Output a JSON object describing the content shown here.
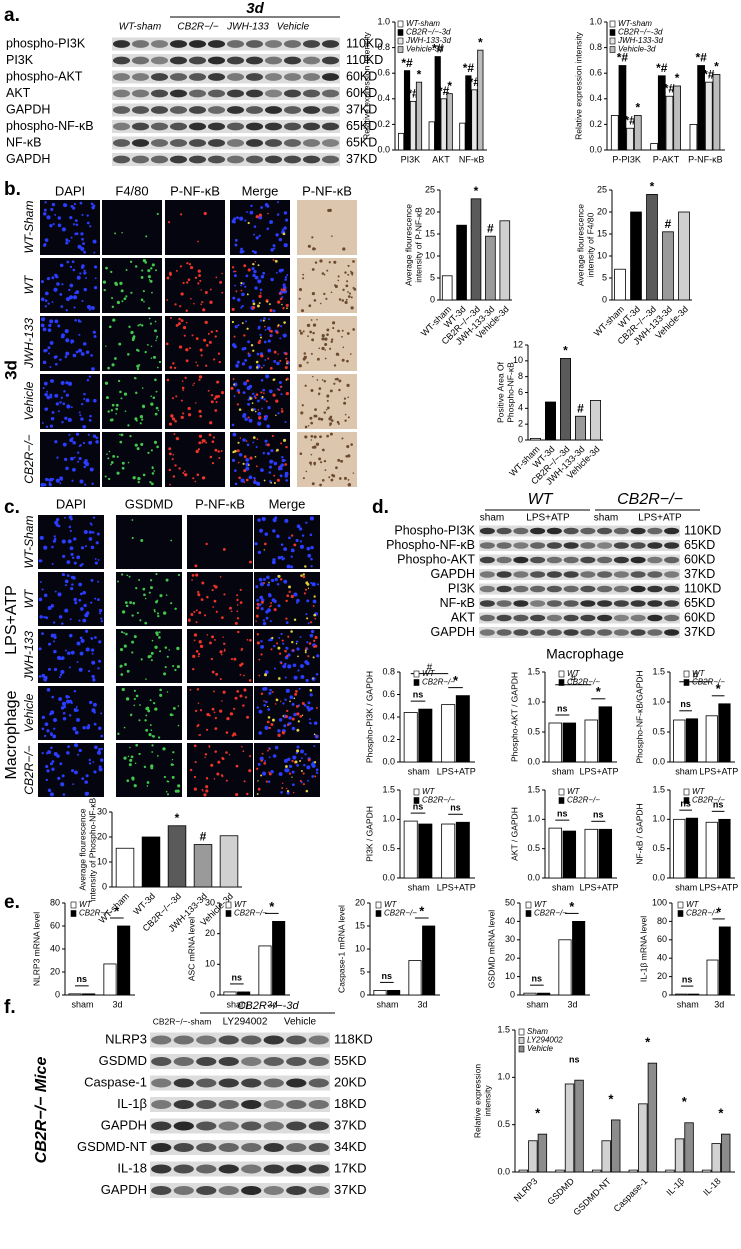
{
  "figure": {
    "panel_labels": [
      "a.",
      "b.",
      "c.",
      "d.",
      "e.",
      "f."
    ],
    "blot_a": {
      "group_title": "3d",
      "groups": [
        "WT-sham",
        "CB2R−/−",
        "JWH-133",
        "Vehicle"
      ],
      "rows": [
        "phospho-PI3K",
        "PI3K",
        "phospho-AKT",
        "AKT",
        "GAPDH",
        "phospho-NF-κB",
        "NF-κB",
        "GAPDH"
      ],
      "sizes": [
        "110KD",
        "110KD",
        "60KD",
        "60KD",
        "37KD",
        "65KD",
        "65KD",
        "37KD"
      ]
    },
    "images_b": {
      "group": "3d",
      "columns": [
        "DAPI",
        "F4/80",
        "P-NF-κB",
        "Merge",
        "P-NF-κB"
      ],
      "rows": [
        "WT-Sham",
        "WT",
        "JWH-133",
        "Vehicle",
        "CB2R−/−"
      ]
    },
    "images_c": {
      "groups": [
        "LPS+ATP",
        "Macrophage"
      ],
      "columns": [
        "DAPI",
        "GSDMD",
        "P-NF-κB",
        "Merge"
      ],
      "rows": [
        "WT-Sham",
        "WT",
        "JWH-133",
        "Vehicle",
        "CB2R−/−"
      ]
    },
    "blot_d": {
      "groups": [
        "WT",
        "CB2R−/−"
      ],
      "lanes": [
        "sham",
        "LPS+ATP",
        "sham",
        "LPS+ATP"
      ],
      "rows": [
        "Phospho-PI3K",
        "Phospho-NF-κB",
        "Phospho-AKT",
        "GAPDH",
        "PI3K",
        "NF-κB",
        "AKT",
        "GAPDH"
      ],
      "sizes": [
        "110KD",
        "65KD",
        "60KD",
        "37KD",
        "110KD",
        "65KD",
        "60KD",
        "37KD"
      ],
      "caption": "Macrophage"
    },
    "blot_f": {
      "side_label": "CB2R−/− Mice",
      "group_title": "CB2R−/−-3d",
      "groups": [
        "CB2R−/−-sham",
        "LY294002",
        "Vehicle"
      ],
      "rows": [
        "NLRP3",
        "GSDMD",
        "Caspase-1",
        "IL-1β",
        "GAPDH",
        "GSDMD-NT",
        "IL-18",
        "GAPDH"
      ],
      "sizes": [
        "118KD",
        "55KD",
        "20KD",
        "18KD",
        "37KD",
        "34KD",
        "17KD",
        "37KD"
      ]
    }
  },
  "chart_data": [
    {
      "type": "bar",
      "ylabel": "Relative expression intensity",
      "categories": [
        "PI3K",
        "AKT",
        "NF-κB"
      ],
      "ylim": [
        0,
        1
      ],
      "yticks": [
        {
          "value": 0,
          "label": "0.0"
        },
        0.2,
        0.4,
        0.6,
        0.8,
        {
          "value": 1,
          "label": "1.0"
        }
      ],
      "series": [
        {
          "name": "WT-sham",
          "color": "#ffffff",
          "values": [
            0.13,
            0.22,
            0.21
          ]
        },
        {
          "name": "CB2R−/−-3d",
          "color": "#000000",
          "values": [
            0.62,
            0.73,
            0.58
          ],
          "marks": [
            "*#",
            "*#",
            "*#"
          ]
        },
        {
          "name": "JWH-133-3d",
          "color": "#e6e6e6",
          "values": [
            0.38,
            0.4,
            0.47
          ],
          "marks": [
            "*#",
            "*#",
            "*#"
          ]
        },
        {
          "name": "Vehicle-3d",
          "color": "#bdbdbd",
          "values": [
            0.53,
            0.44,
            0.78
          ],
          "marks": [
            "*",
            "*",
            "*"
          ]
        }
      ]
    },
    {
      "type": "bar",
      "ylabel": "Relative expression intensity",
      "categories": [
        "P-PI3K",
        "P-AKT",
        "P-NF-κB"
      ],
      "ylim": [
        0,
        1
      ],
      "yticks": [
        {
          "value": 0,
          "label": "0.0"
        },
        0.2,
        0.4,
        0.6,
        0.8,
        {
          "value": 1,
          "label": "1.0"
        }
      ],
      "series": [
        {
          "name": "WT-sham",
          "color": "#ffffff",
          "values": [
            0.27,
            0.05,
            0.2
          ]
        },
        {
          "name": "CB2R−/−-3d",
          "color": "#000000",
          "values": [
            0.66,
            0.58,
            0.66
          ],
          "marks": [
            "*#",
            "*#",
            "*#"
          ]
        },
        {
          "name": "JWH-133-3d",
          "color": "#e6e6e6",
          "values": [
            0.17,
            0.42,
            0.53
          ],
          "marks": [
            "*#",
            "*#",
            "*#"
          ]
        },
        {
          "name": "Vehicle-3d",
          "color": "#bdbdbd",
          "values": [
            0.27,
            0.5,
            0.59
          ],
          "marks": [
            "*",
            "*",
            "*"
          ]
        }
      ]
    },
    {
      "type": "bar",
      "ylabel": [
        "Average flourescence",
        "intensity of P-NF-κB"
      ],
      "categories": [
        "WT-sham",
        "WT-3d",
        "CB2R−/−-3d",
        "JWH-133-3d",
        "Vehicle-3d"
      ],
      "ylim": [
        0,
        25
      ],
      "yticks": [
        0,
        5,
        10,
        15,
        20,
        25
      ],
      "values": [
        5.5,
        17,
        23,
        14.5,
        18
      ],
      "colors": [
        "#ffffff",
        "#000000",
        "#5a5a5a",
        "#9a9a9a",
        "#d0d0d0"
      ],
      "marks": [
        null,
        null,
        "*",
        "#",
        null
      ]
    },
    {
      "type": "bar",
      "ylabel": [
        "Average flourescence",
        "intensity of F4/80"
      ],
      "categories": [
        "WT-sham",
        "WT-3d",
        "CB2R−/−-3d",
        "JWH-133-3d",
        "Vehicle-3d"
      ],
      "ylim": [
        0,
        25
      ],
      "yticks": [
        0,
        5,
        10,
        15,
        20,
        25
      ],
      "values": [
        7,
        20,
        24,
        15.5,
        20
      ],
      "colors": [
        "#ffffff",
        "#000000",
        "#5a5a5a",
        "#9a9a9a",
        "#d0d0d0"
      ],
      "marks": [
        null,
        null,
        "*",
        "#",
        null
      ]
    },
    {
      "type": "bar",
      "ylabel": [
        "Positive Area Of",
        "Phospho-NF-κB"
      ],
      "categories": [
        "WT-sham",
        "WT-3d",
        "CB2R−/−-3d",
        "JWH-133-3d",
        "Vehicle-3d"
      ],
      "ylim": [
        0,
        12
      ],
      "yticks": [
        0,
        2,
        4,
        6,
        8,
        10,
        12
      ],
      "values": [
        0.2,
        4.8,
        10.3,
        3,
        5
      ],
      "colors": [
        "#ffffff",
        "#000000",
        "#5a5a5a",
        "#9a9a9a",
        "#d0d0d0"
      ],
      "marks": [
        null,
        null,
        "*",
        "#",
        null
      ]
    },
    {
      "type": "bar",
      "ylabel": [
        "Average flourescence",
        "intensity of Phospho-NF-κB"
      ],
      "categories": [
        "WT-sham",
        "WT-3d",
        "CB2R−/−-3d",
        "JWH-133-3d",
        "Vehicle-3d"
      ],
      "ylim": [
        0,
        30
      ],
      "yticks": [
        0,
        10,
        20,
        30
      ],
      "values": [
        15.5,
        20,
        24.5,
        17,
        20.5
      ],
      "colors": [
        "#ffffff",
        "#000000",
        "#5a5a5a",
        "#9a9a9a",
        "#d0d0d0"
      ],
      "marks": [
        null,
        null,
        "*",
        "#",
        null
      ]
    },
    {
      "type": "bar",
      "ylabel": "Phospho-PI3K / GAPDH",
      "categories": [
        "sham",
        "LPS+ATP"
      ],
      "ylim": [
        0,
        0.8
      ],
      "yticks": [
        {
          "value": 0,
          "label": "0.0"
        },
        0.2,
        0.4,
        0.6,
        0.8
      ],
      "series": [
        {
          "name": "WT",
          "color": "#ffffff",
          "values": [
            0.44,
            0.51
          ]
        },
        {
          "name": "CB2R−/−",
          "color": "#000000",
          "values": [
            0.47,
            0.59
          ]
        }
      ],
      "pair_labels": [
        "ns",
        "*"
      ],
      "between_label": "#"
    },
    {
      "type": "bar",
      "ylabel": "Phospho-AKT / GAPDH",
      "categories": [
        "sham",
        "LPS+ATP"
      ],
      "ylim": [
        0,
        1.5
      ],
      "yticks": [
        {
          "value": 0,
          "label": "0.0"
        },
        0.5,
        {
          "value": 1,
          "label": "1.0"
        },
        1.5
      ],
      "series": [
        {
          "name": "WT",
          "color": "#ffffff",
          "values": [
            0.65,
            0.7
          ]
        },
        {
          "name": "CB2R−/−",
          "color": "#000000",
          "values": [
            0.65,
            0.92
          ]
        }
      ],
      "pair_labels": [
        "ns",
        "*"
      ],
      "between_label": "#"
    },
    {
      "type": "bar",
      "ylabel": "Phospho-NF-κB/GAPDH",
      "categories": [
        "sham",
        "LPS+ATP"
      ],
      "ylim": [
        0,
        1.5
      ],
      "yticks": [
        {
          "value": 0,
          "label": "0.0"
        },
        0.5,
        {
          "value": 1,
          "label": "1.0"
        },
        1.5
      ],
      "series": [
        {
          "name": "WT",
          "color": "#ffffff",
          "values": [
            0.7,
            0.77
          ]
        },
        {
          "name": "CB2R−/−",
          "color": "#000000",
          "values": [
            0.72,
            0.97
          ]
        }
      ],
      "pair_labels": [
        "ns",
        "*"
      ],
      "between_label": "#"
    },
    {
      "type": "bar",
      "ylabel": "PI3K / GAPDH",
      "categories": [
        "sham",
        "LPS+ATP"
      ],
      "ylim": [
        0,
        1.5
      ],
      "yticks": [
        {
          "value": 0,
          "label": "0.0"
        },
        0.5,
        {
          "value": 1,
          "label": "1.0"
        },
        1.5
      ],
      "series": [
        {
          "name": "WT",
          "color": "#ffffff",
          "values": [
            0.97,
            0.92
          ]
        },
        {
          "name": "CB2R−/−",
          "color": "#000000",
          "values": [
            0.92,
            0.95
          ]
        }
      ],
      "pair_labels": [
        "ns",
        "ns"
      ]
    },
    {
      "type": "bar",
      "ylabel": "AKT / GAPDH",
      "categories": [
        "sham",
        "LPS+ATP"
      ],
      "ylim": [
        0,
        1.5
      ],
      "yticks": [
        {
          "value": 0,
          "label": "0.0"
        },
        0.5,
        {
          "value": 1,
          "label": "1.0"
        },
        1.5
      ],
      "series": [
        {
          "name": "WT",
          "color": "#ffffff",
          "values": [
            0.85,
            0.83
          ]
        },
        {
          "name": "CB2R−/−",
          "color": "#000000",
          "values": [
            0.8,
            0.83
          ]
        }
      ],
      "pair_labels": [
        "ns",
        "ns"
      ]
    },
    {
      "type": "bar",
      "ylabel": "NF-κB / GAPDH",
      "categories": [
        "sham",
        "LPS+ATP"
      ],
      "ylim": [
        0,
        1.5
      ],
      "yticks": [
        {
          "value": 0,
          "label": "0.0"
        },
        0.5,
        {
          "value": 1,
          "label": "1.0"
        },
        1.5
      ],
      "series": [
        {
          "name": "WT",
          "color": "#ffffff",
          "values": [
            1.0,
            0.95
          ]
        },
        {
          "name": "CB2R−/−",
          "color": "#000000",
          "values": [
            1.02,
            1.0
          ]
        }
      ],
      "pair_labels": [
        "ns",
        "ns"
      ]
    },
    {
      "type": "bar",
      "ylabel": "NLRP3 mRNA level",
      "categories": [
        "sham",
        "3d"
      ],
      "ylim": [
        0,
        80
      ],
      "yticks": [
        0,
        20,
        40,
        60,
        80
      ],
      "series": [
        {
          "name": "WT",
          "color": "#ffffff",
          "values": [
            1,
            27
          ]
        },
        {
          "name": "CB2R−/−",
          "color": "#000000",
          "values": [
            1,
            60
          ]
        }
      ],
      "pair_labels": [
        "ns",
        "*"
      ]
    },
    {
      "type": "bar",
      "ylabel": "ASC mRNA level",
      "categories": [
        "sham",
        "3d"
      ],
      "ylim": [
        0,
        30
      ],
      "yticks": [
        0,
        10,
        20,
        30
      ],
      "series": [
        {
          "name": "WT",
          "color": "#ffffff",
          "values": [
            1,
            16
          ]
        },
        {
          "name": "CB2R−/−",
          "color": "#000000",
          "values": [
            1,
            24
          ]
        }
      ],
      "pair_labels": [
        "ns",
        "*"
      ]
    },
    {
      "type": "bar",
      "ylabel": "Caspase-1 mRNA level",
      "categories": [
        "sham",
        "3d"
      ],
      "ylim": [
        0,
        20
      ],
      "yticks": [
        0,
        5,
        10,
        15,
        20
      ],
      "series": [
        {
          "name": "WT",
          "color": "#ffffff",
          "values": [
            1,
            7.5
          ]
        },
        {
          "name": "CB2R−/−",
          "color": "#000000",
          "values": [
            1,
            15
          ]
        }
      ],
      "pair_labels": [
        "ns",
        "*"
      ]
    },
    {
      "type": "bar",
      "ylabel": "GSDMD mRNA level",
      "categories": [
        "sham",
        "3d"
      ],
      "ylim": [
        0,
        50
      ],
      "yticks": [
        0,
        10,
        20,
        30,
        40,
        50
      ],
      "series": [
        {
          "name": "WT",
          "color": "#ffffff",
          "values": [
            1,
            30
          ]
        },
        {
          "name": "CB2R−/−",
          "color": "#000000",
          "values": [
            1,
            40
          ]
        }
      ],
      "pair_labels": [
        "ns",
        "*"
      ]
    },
    {
      "type": "bar",
      "ylabel": "IL-1β mRNA level",
      "categories": [
        "sham",
        "3d"
      ],
      "ylim": [
        0,
        100
      ],
      "yticks": [
        0,
        20,
        40,
        60,
        80,
        100
      ],
      "series": [
        {
          "name": "WT",
          "color": "#ffffff",
          "values": [
            1,
            38
          ]
        },
        {
          "name": "CB2R−/−",
          "color": "#000000",
          "values": [
            1,
            74
          ]
        }
      ],
      "pair_labels": [
        "ns",
        "*"
      ]
    },
    {
      "type": "bar",
      "ylabel": [
        "Relative expression",
        "intensity"
      ],
      "categories": [
        "NLRP3",
        "GSDMD",
        "GSDMD-NT",
        "Caspase-1",
        "IL-1β",
        "IL-18"
      ],
      "ylim": [
        0,
        1.5
      ],
      "yticks": [
        {
          "value": 0,
          "label": "0.0"
        },
        0.5,
        {
          "value": 1,
          "label": "1.0"
        },
        1.5
      ],
      "series": [
        {
          "name": "Sham",
          "color": "#ffffff",
          "values": [
            0.02,
            0.02,
            0.02,
            0.02,
            0.02,
            0.02
          ]
        },
        {
          "name": "LY294002",
          "color": "#d2d2d2",
          "values": [
            0.33,
            0.93,
            0.33,
            0.72,
            0.35,
            0.3
          ]
        },
        {
          "name": "Vehicle",
          "color": "#8c8c8c",
          "values": [
            0.4,
            0.97,
            0.55,
            1.15,
            0.52,
            0.4
          ]
        }
      ],
      "pair_labels": [
        "*",
        "ns",
        "*",
        "*",
        "*",
        "*"
      ]
    }
  ]
}
